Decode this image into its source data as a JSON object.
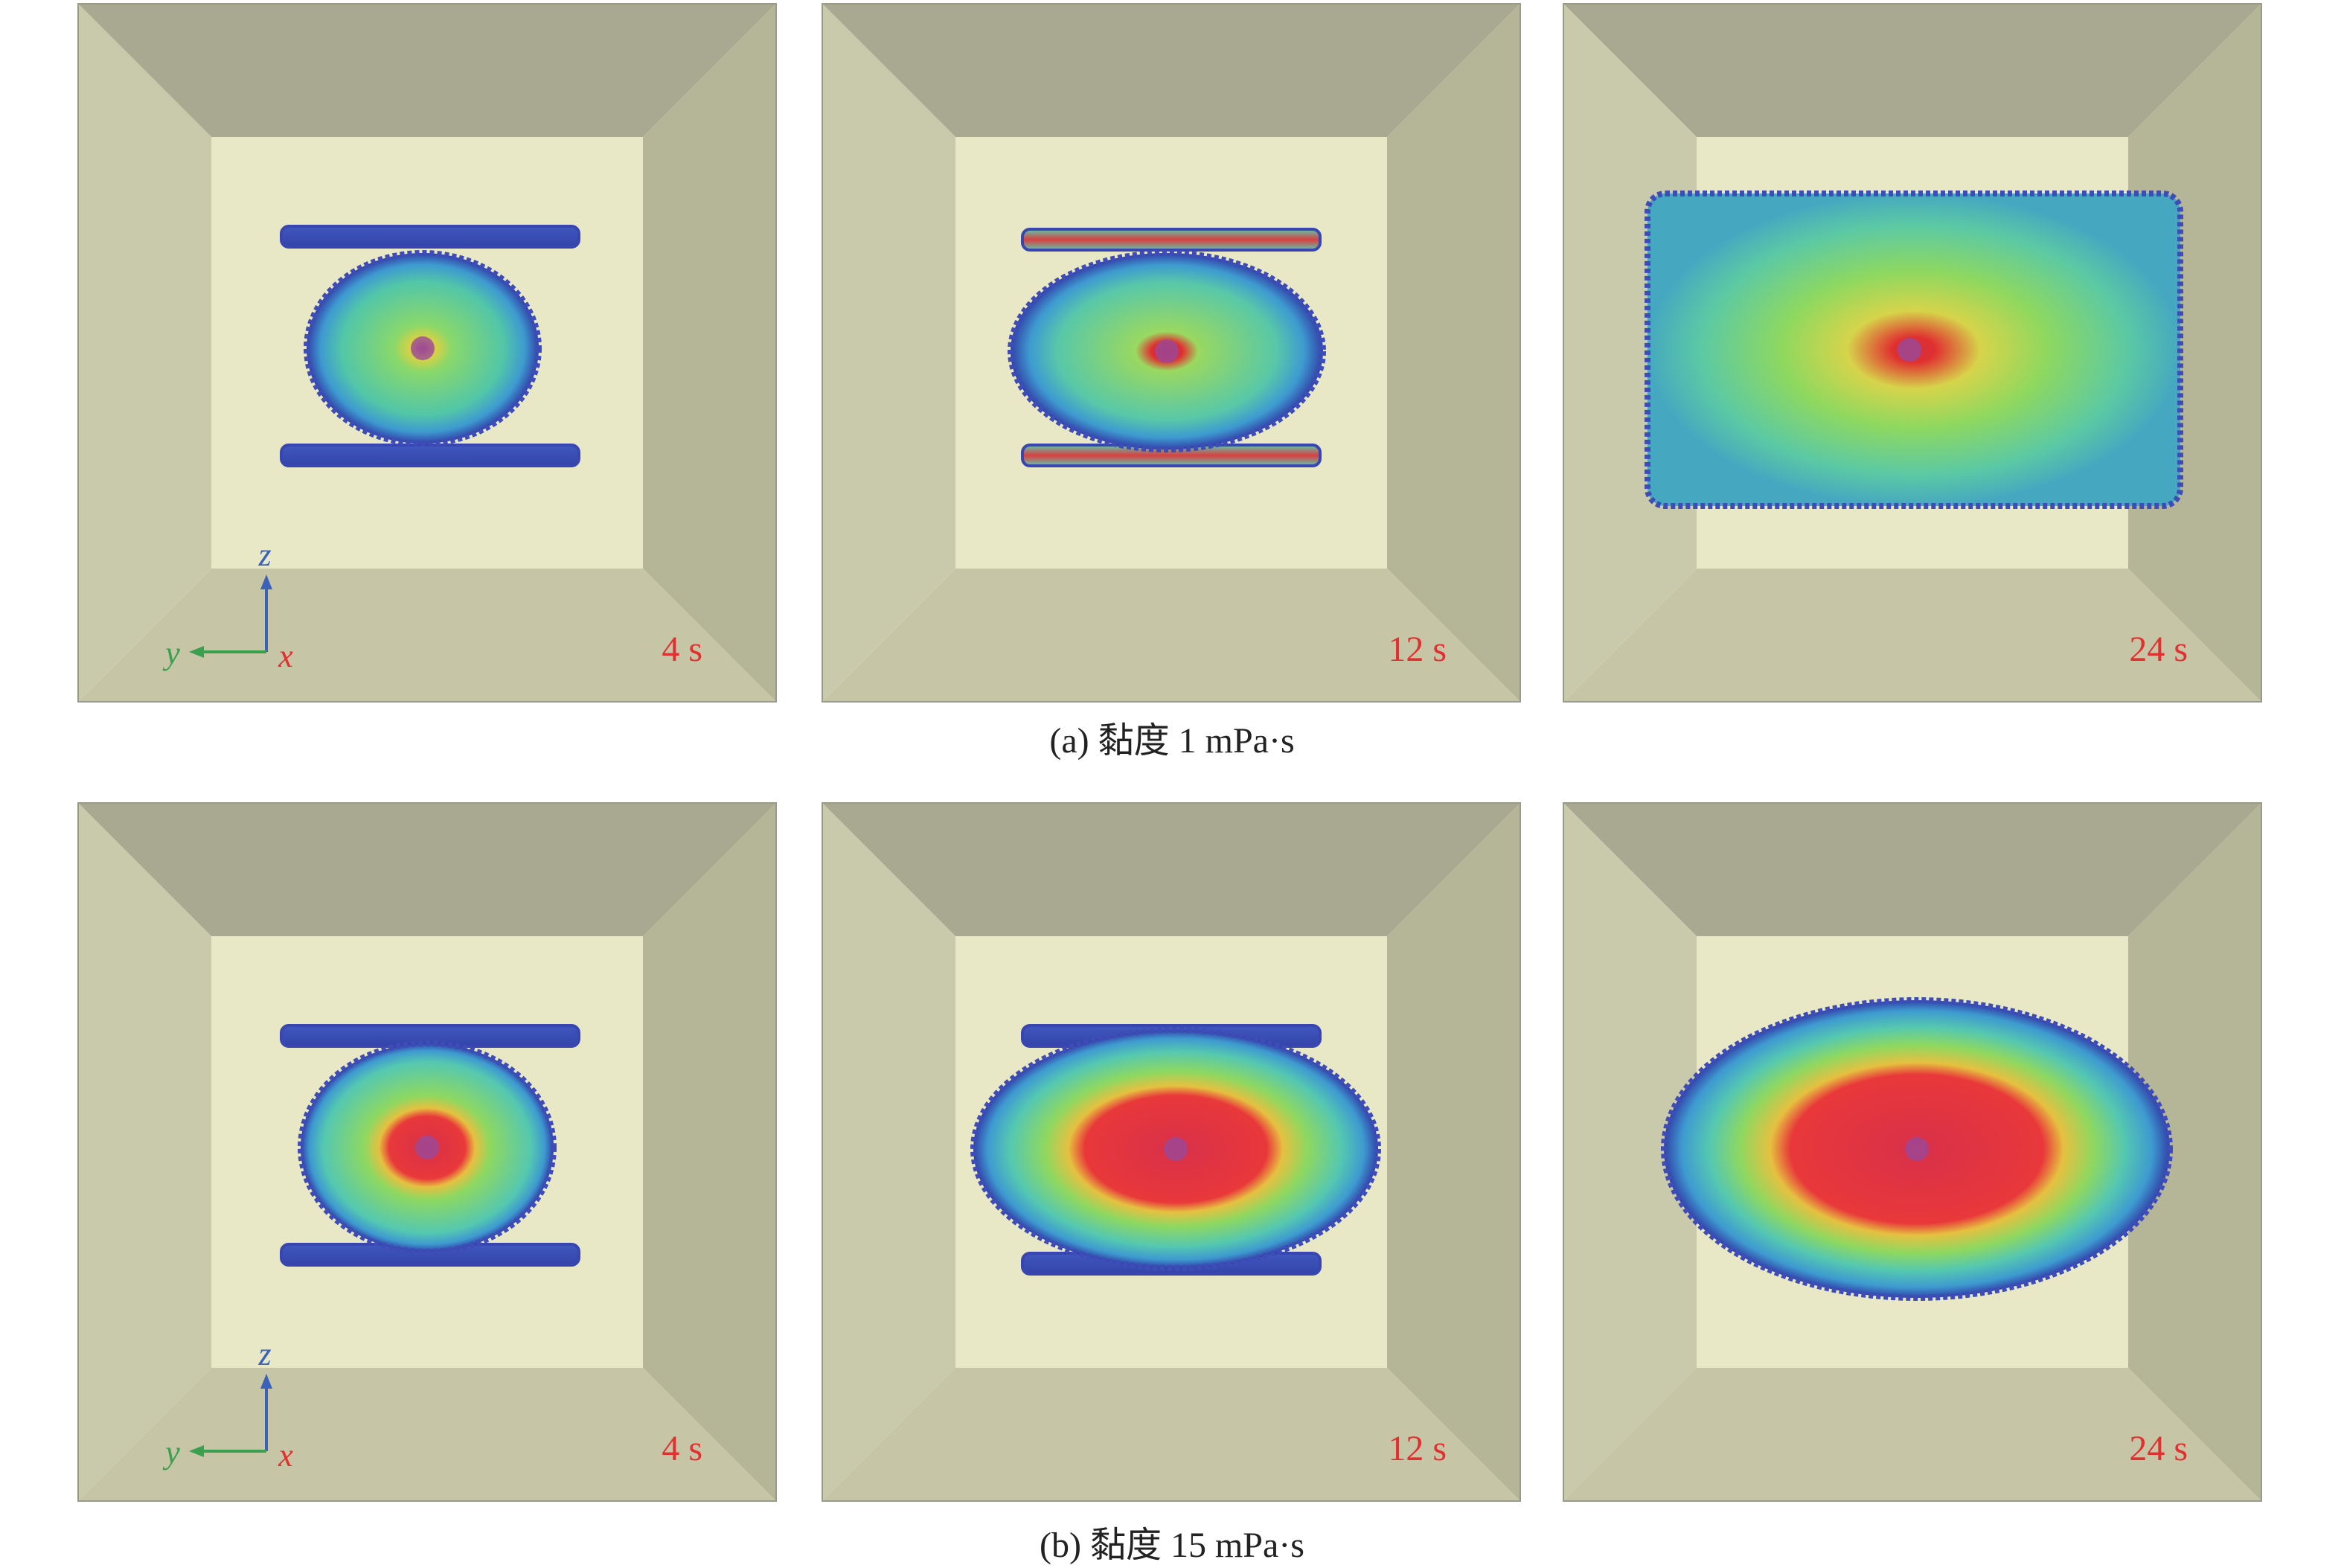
{
  "rows": [
    {
      "caption": "(a) 黏度 1 mPa·s",
      "axes": {
        "z": "z",
        "y": "y",
        "x": "x"
      },
      "panels": [
        {
          "time": "4 s"
        },
        {
          "time": "12 s"
        },
        {
          "time": "24 s"
        }
      ]
    },
    {
      "caption": "(b) 黏度 15 mPa·s",
      "axes": {
        "z": "z",
        "y": "y",
        "x": "x"
      },
      "panels": [
        {
          "time": "4 s"
        },
        {
          "time": "12 s"
        },
        {
          "time": "24 s"
        }
      ]
    }
  ]
}
